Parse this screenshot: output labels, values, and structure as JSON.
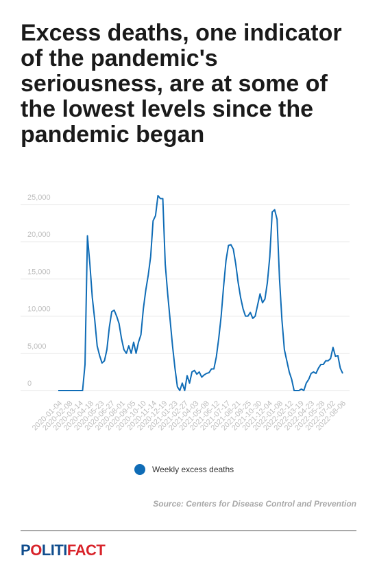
{
  "title": "Excess deaths, one indicator of the pandemic's seriousness, are at some of the lowest levels since the pandemic began",
  "source": "Source: Centers for Disease Control and Prevention",
  "logo": {
    "part1": "P",
    "part2": "O",
    "part3": "LITI",
    "part4": "FACT"
  },
  "colors": {
    "line": "#0f6cb6",
    "grid": "#e6e6e6",
    "tick": "#bdbdbd",
    "logo_blue": "#0f4c8c",
    "logo_red": "#d8232a"
  },
  "chart_data": {
    "type": "line",
    "title": "Excess deaths, one indicator of the pandemic's seriousness, are at some of the lowest levels since the pandemic began",
    "xlabel": "",
    "ylabel": "",
    "ylim": [
      0,
      25000
    ],
    "yticks": [
      0,
      5000,
      10000,
      15000,
      20000,
      25000
    ],
    "ytick_labels": [
      "0",
      "5,000",
      "10,000",
      "15,000",
      "20,000",
      "25,000"
    ],
    "grid": true,
    "legend": "bottom",
    "xtick_labels": [
      "2020-01-04",
      "2020-02-08",
      "2020-03-14",
      "2020-04-18",
      "2020-05-23",
      "2020-06-27",
      "2020-08-01",
      "2020-09-05",
      "2020-10-10",
      "2020-11-14",
      "2020-12-19",
      "2021-01-23",
      "2021-02-27",
      "2021-04-03",
      "2021-05-08",
      "2021-06-12",
      "2021-07-17",
      "2021-08-21",
      "2021-09-25",
      "2021-10-30",
      "2021-12-04",
      "2022-01-08",
      "2022-02-12",
      "2022-03-19",
      "2022-04-23",
      "2022-05-28",
      "2022-07-02",
      "2022-08-06"
    ],
    "series": [
      {
        "name": "Weekly excess deaths",
        "values": [
          0,
          0,
          0,
          0,
          0,
          0,
          0,
          0,
          0,
          0,
          0,
          3500,
          20800,
          17000,
          12500,
          9500,
          6000,
          4700,
          3700,
          4000,
          5500,
          8500,
          10600,
          10800,
          10000,
          9000,
          7000,
          5500,
          5000,
          6000,
          5000,
          6500,
          5000,
          6500,
          7500,
          11000,
          13500,
          15500,
          18000,
          22800,
          23500,
          26200,
          25800,
          25800,
          17000,
          13000,
          9500,
          6000,
          3000,
          500,
          0,
          1000,
          0,
          2000,
          1000,
          2500,
          2700,
          2200,
          2500,
          1800,
          2100,
          2300,
          2400,
          2900,
          2900,
          4500,
          7000,
          10000,
          14000,
          17500,
          19500,
          19600,
          19000,
          17000,
          14500,
          12500,
          11000,
          10000,
          10000,
          10500,
          9700,
          10000,
          11500,
          13000,
          11800,
          12300,
          14500,
          18000,
          24000,
          24300,
          23000,
          15000,
          9500,
          5500,
          4000,
          2500,
          1500,
          0,
          0,
          0,
          200,
          0,
          1000,
          1500,
          2300,
          2500,
          2300,
          3000,
          3500,
          3500,
          4000,
          4000,
          4300,
          5800,
          4600,
          4700,
          3000,
          2300
        ]
      }
    ]
  }
}
